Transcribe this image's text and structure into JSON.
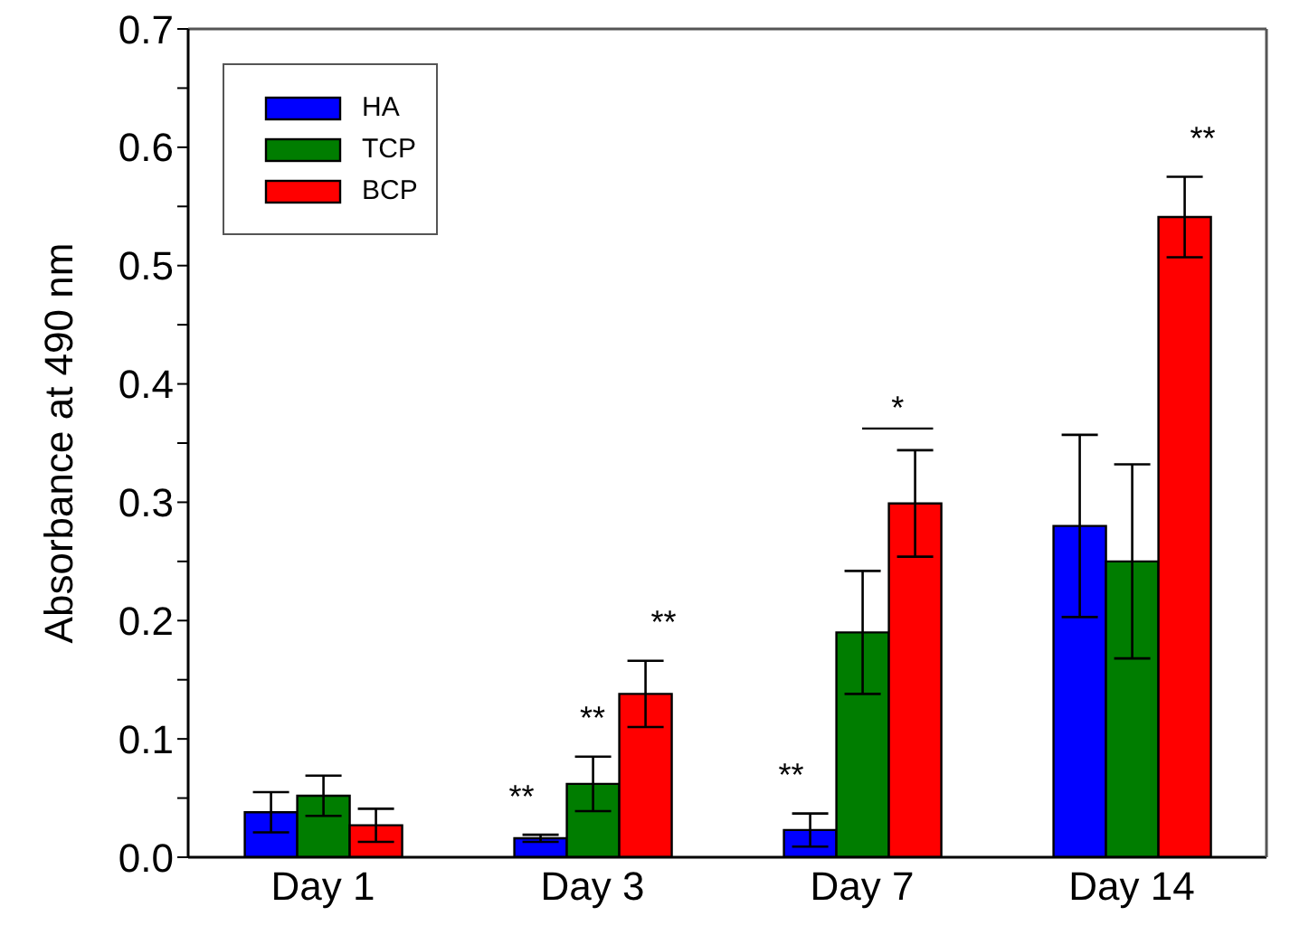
{
  "chart_data": {
    "type": "bar",
    "ylabel": "Absorbance at 490 nm",
    "categories": [
      "Day 1",
      "Day 3",
      "Day 7",
      "Day 14"
    ],
    "series": [
      {
        "name": "HA",
        "color": "#0000ff",
        "values": [
          0.038,
          0.016,
          0.023,
          0.28
        ],
        "errors": [
          0.017,
          0.003,
          0.014,
          0.077
        ]
      },
      {
        "name": "TCP",
        "color": "#007d00",
        "values": [
          0.052,
          0.062,
          0.19,
          0.25
        ],
        "errors": [
          0.017,
          0.023,
          0.052,
          0.082
        ]
      },
      {
        "name": "BCP",
        "color": "#ff0000",
        "values": [
          0.027,
          0.138,
          0.299,
          0.541
        ],
        "errors": [
          0.014,
          0.028,
          0.045,
          0.034
        ]
      }
    ],
    "ylim": [
      0,
      0.7
    ],
    "yticks": [
      {
        "value": 0,
        "label": "0.0"
      },
      {
        "value": 0.05,
        "label": null
      },
      {
        "value": 0.1,
        "label": "0.1"
      },
      {
        "value": 0.15,
        "label": null
      },
      {
        "value": 0.2,
        "label": "0.2"
      },
      {
        "value": 0.25,
        "label": null
      },
      {
        "value": 0.3,
        "label": "0.3"
      },
      {
        "value": 0.35,
        "label": null
      },
      {
        "value": 0.4,
        "label": "0.4"
      },
      {
        "value": 0.45,
        "label": null
      },
      {
        "value": 0.5,
        "label": "0.5"
      },
      {
        "value": 0.55,
        "label": null
      },
      {
        "value": 0.6,
        "label": "0.6"
      },
      {
        "value": 0.65,
        "label": null
      },
      {
        "value": 0.7,
        "label": "0.7"
      }
    ],
    "annotations": [
      "**",
      "**",
      "**",
      "**",
      "*",
      "**"
    ],
    "legend": "top left",
    "grid": false
  }
}
